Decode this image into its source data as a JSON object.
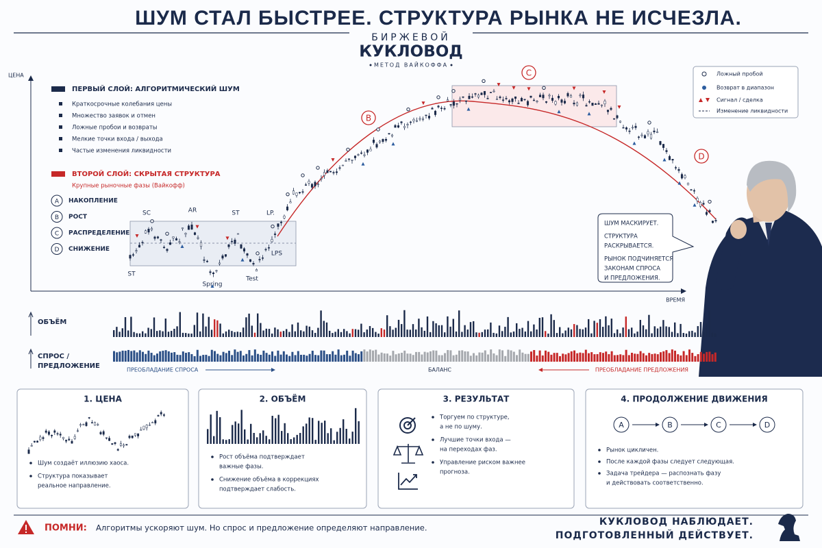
{
  "header": {
    "title": "ШУМ СТАЛ БЫСТРЕЕ. СТРУКТУРА РЫНКА НЕ ИСЧЕЗЛА.",
    "brand": [
      "БИРЖЕВОЙ",
      "КУКЛОВОД"
    ],
    "brand_sub": "МЕТОД ВАЙКОФФА"
  },
  "main_chart": {
    "y_label": "ЦЕНА",
    "x_label": "ВРЕМЯ",
    "labels": [
      "SC",
      "AR",
      "ST",
      "LP.",
      "ST",
      "Spring",
      "Test",
      "LPS"
    ],
    "phase_markers": [
      "B",
      "C",
      "D"
    ]
  },
  "layer1": {
    "title": "ПЕРВЫЙ СЛОЙ: АЛГОРИТМИЧЕСКИЙ ШУМ",
    "items": [
      "Краткосрочные колебания цены",
      "Множество заявок и отмен",
      "Ложные пробои и возвраты",
      "Мелкие точки входа / выхода",
      "Частые изменения ликвидности"
    ]
  },
  "layer2": {
    "title": "ВТОРОЙ СЛОЙ: СКРЫТАЯ СТРУКТУРА",
    "subtitle": "Крупные рыночные фазы (Вайкофф)"
  },
  "phases": [
    {
      "letter": "A",
      "name": "НАКОПЛЕНИЕ"
    },
    {
      "letter": "B",
      "name": "РОСТ"
    },
    {
      "letter": "C",
      "name": "РАСПРЕДЕЛЕНИЕ"
    },
    {
      "letter": "D",
      "name": "СНИЖЕНИЕ"
    }
  ],
  "legend": [
    "Ложный пробой",
    "Возврат в диапазон",
    "Сигнал / сделка",
    "Изменение ликвидности"
  ],
  "bubble": [
    [
      "ШУМ МАСКИРУЕТ."
    ],
    [
      "СТРУКТУРА",
      "РАСКРЫВАЕТСЯ."
    ],
    [
      "РЫНОК ПОДЧИНЯЕТСЯ",
      "ЗАКОНАМ СПРОСА",
      "И ПРЕДЛОЖЕНИЯ."
    ]
  ],
  "volume": {
    "label": "ОБЪЁМ"
  },
  "supply_demand": {
    "label": [
      "СПРОС /",
      "ПРЕДЛОЖЕНИЕ"
    ],
    "demand": "ПРЕОБЛАДАНИЕ СПРОСА",
    "balance": "БАЛАНС",
    "supply": "ПРЕОБЛАДАНИЕ ПРЕДЛОЖЕНИЯ"
  },
  "cards": [
    {
      "title": "1. ЦЕНА",
      "bullets": [
        [
          "Шум создаёт иллюзию хаоса."
        ],
        [
          "Структура показывает",
          "реальное направление."
        ]
      ]
    },
    {
      "title": "2. ОБЪЁМ",
      "bullets": [
        [
          "Рост объёма подтверждает",
          "важные фазы."
        ],
        [
          "Снижение объёма в коррекциях",
          "подтверждает слабость."
        ]
      ]
    },
    {
      "title": "3. РЕЗУЛЬТАТ",
      "bullets": [
        [
          "Торгуем по структуре,",
          "а не по шуму."
        ],
        [
          "Лучшие точки входа —",
          "на переходах фаз."
        ],
        [
          "Управление риском важнее",
          "прогноза."
        ]
      ]
    },
    {
      "title": "4. ПРОДОЛЖЕНИЕ ДВИЖЕНИЯ",
      "bullets": [
        [
          "Рынок цикличен."
        ],
        [
          "После каждой фазы следует следующая."
        ],
        [
          "Задача трейдера — распознать фазу",
          "и действовать соответственно."
        ]
      ]
    }
  ],
  "footer": {
    "label": "ПОМНИ:",
    "text": "Алгоритмы ускоряют шум. Но спрос и предложение определяют направление.",
    "motto": [
      "КУКЛОВОД НАБЛЮДАЕТ.",
      "ПОДГОТОВЛЕННЫЙ ДЕЙСТВУЕТ."
    ]
  }
}
